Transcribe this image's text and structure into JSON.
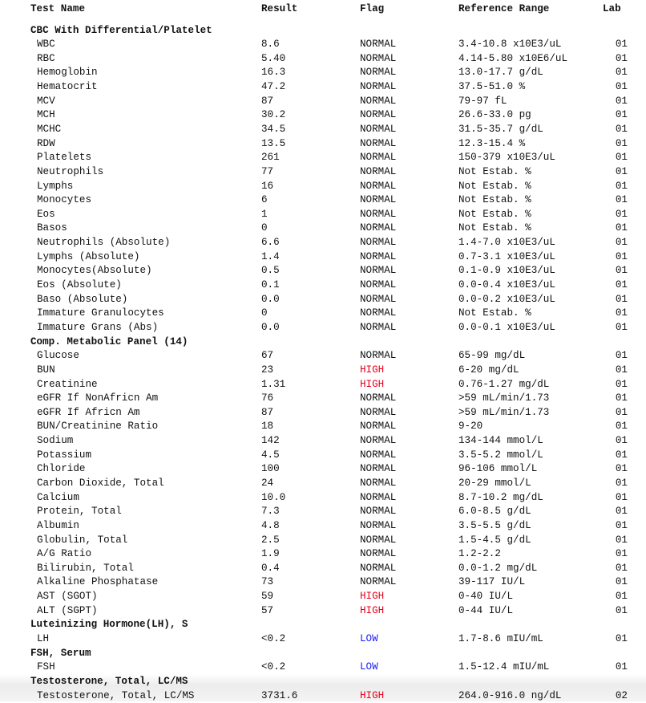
{
  "header": {
    "test_name": "Test Name",
    "result": "Result",
    "flag": "Flag",
    "reference_range": "Reference Range",
    "lab": "Lab"
  },
  "flag_colors": {
    "HIGH": "#e8001c",
    "LOW": "#1a1aff",
    "NORMAL": "#111111"
  },
  "sections": [
    {
      "title": "CBC With Differential/Platelet",
      "rows": [
        [
          "WBC",
          "8.6",
          "NORMAL",
          "3.4-10.8 x10E3/uL",
          "01"
        ],
        [
          "RBC",
          "5.40",
          "NORMAL",
          "4.14-5.80 x10E6/uL",
          "01"
        ],
        [
          "Hemoglobin",
          "16.3",
          "NORMAL",
          "13.0-17.7 g/dL",
          "01"
        ],
        [
          "Hematocrit",
          "47.2",
          "NORMAL",
          "37.5-51.0 %",
          "01"
        ],
        [
          "MCV",
          "87",
          "NORMAL",
          "79-97 fL",
          "01"
        ],
        [
          "MCH",
          "30.2",
          "NORMAL",
          "26.6-33.0 pg",
          "01"
        ],
        [
          "MCHC",
          "34.5",
          "NORMAL",
          "31.5-35.7 g/dL",
          "01"
        ],
        [
          "RDW",
          "13.5",
          "NORMAL",
          "12.3-15.4 %",
          "01"
        ],
        [
          "Platelets",
          "261",
          "NORMAL",
          "150-379 x10E3/uL",
          "01"
        ],
        [
          "Neutrophils",
          "77",
          "NORMAL",
          "Not Estab. %",
          "01"
        ],
        [
          "Lymphs",
          "16",
          "NORMAL",
          "Not Estab. %",
          "01"
        ],
        [
          "Monocytes",
          "6",
          "NORMAL",
          "Not Estab. %",
          "01"
        ],
        [
          "Eos",
          "1",
          "NORMAL",
          "Not Estab. %",
          "01"
        ],
        [
          "Basos",
          "0",
          "NORMAL",
          "Not Estab. %",
          "01"
        ],
        [
          "Neutrophils (Absolute)",
          "6.6",
          "NORMAL",
          "1.4-7.0 x10E3/uL",
          "01"
        ],
        [
          "Lymphs (Absolute)",
          "1.4",
          "NORMAL",
          "0.7-3.1 x10E3/uL",
          "01"
        ],
        [
          "Monocytes(Absolute)",
          "0.5",
          "NORMAL",
          "0.1-0.9 x10E3/uL",
          "01"
        ],
        [
          "Eos (Absolute)",
          "0.1",
          "NORMAL",
          "0.0-0.4 x10E3/uL",
          "01"
        ],
        [
          "Baso (Absolute)",
          "0.0",
          "NORMAL",
          "0.0-0.2 x10E3/uL",
          "01"
        ],
        [
          "Immature Granulocytes",
          "0",
          "NORMAL",
          "Not Estab. %",
          "01"
        ],
        [
          "Immature Grans (Abs)",
          "0.0",
          "NORMAL",
          "0.0-0.1 x10E3/uL",
          "01"
        ]
      ]
    },
    {
      "title": "Comp. Metabolic Panel (14)",
      "rows": [
        [
          "Glucose",
          "67",
          "NORMAL",
          "65-99 mg/dL",
          "01"
        ],
        [
          "BUN",
          "23",
          "HIGH",
          "6-20 mg/dL",
          "01"
        ],
        [
          "Creatinine",
          "1.31",
          "HIGH",
          "0.76-1.27 mg/dL",
          "01"
        ],
        [
          "eGFR If NonAfricn Am",
          "76",
          "NORMAL",
          ">59 mL/min/1.73",
          "01"
        ],
        [
          "eGFR If Africn Am",
          "87",
          "NORMAL",
          ">59 mL/min/1.73",
          "01"
        ],
        [
          "BUN/Creatinine Ratio",
          "18",
          "NORMAL",
          "9-20",
          "01"
        ],
        [
          "Sodium",
          "142",
          "NORMAL",
          "134-144 mmol/L",
          "01"
        ],
        [
          "Potassium",
          "4.5",
          "NORMAL",
          "3.5-5.2 mmol/L",
          "01"
        ],
        [
          "Chloride",
          "100",
          "NORMAL",
          "96-106 mmol/L",
          "01"
        ],
        [
          "Carbon Dioxide, Total",
          "24",
          "NORMAL",
          "20-29 mmol/L",
          "01"
        ],
        [
          "Calcium",
          "10.0",
          "NORMAL",
          "8.7-10.2 mg/dL",
          "01"
        ],
        [
          "Protein, Total",
          "7.3",
          "NORMAL",
          "6.0-8.5 g/dL",
          "01"
        ],
        [
          "Albumin",
          "4.8",
          "NORMAL",
          "3.5-5.5 g/dL",
          "01"
        ],
        [
          "Globulin, Total",
          "2.5",
          "NORMAL",
          "1.5-4.5 g/dL",
          "01"
        ],
        [
          "A/G Ratio",
          "1.9",
          "NORMAL",
          "1.2-2.2",
          "01"
        ],
        [
          "Bilirubin, Total",
          "0.4",
          "NORMAL",
          "0.0-1.2 mg/dL",
          "01"
        ],
        [
          "Alkaline Phosphatase",
          "73",
          "NORMAL",
          "39-117 IU/L",
          "01"
        ],
        [
          "AST (SGOT)",
          "59",
          "HIGH",
          "0-40 IU/L",
          "01"
        ],
        [
          "ALT (SGPT)",
          "57",
          "HIGH",
          "0-44 IU/L",
          "01"
        ]
      ]
    },
    {
      "title": "Luteinizing Hormone(LH), S",
      "rows": [
        [
          "LH",
          "<0.2",
          "LOW",
          "1.7-8.6 mIU/mL",
          "01"
        ]
      ]
    },
    {
      "title": "FSH, Serum",
      "rows": [
        [
          "FSH",
          "<0.2",
          "LOW",
          "1.5-12.4 mIU/mL",
          "01"
        ]
      ]
    },
    {
      "title": "Testosterone, Total, LC/MS",
      "rows": [
        [
          "Testosterone, Total, LC/MS",
          "3731.6",
          "HIGH",
          "264.0-916.0 ng/dL",
          "02"
        ]
      ]
    }
  ]
}
